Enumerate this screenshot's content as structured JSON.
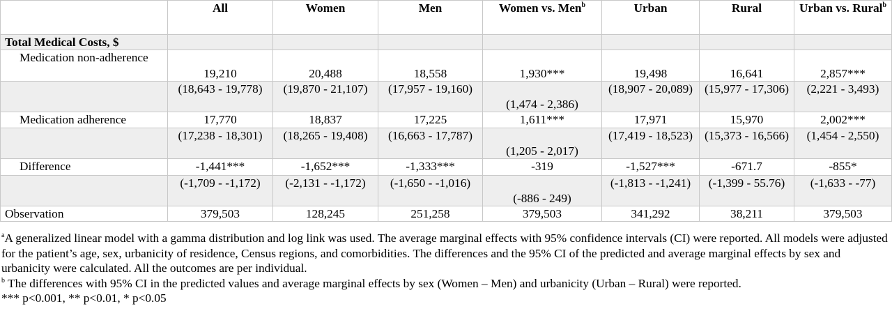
{
  "header": {
    "cols": [
      "All",
      "Women",
      "Men",
      "Women vs. Men",
      "Urban",
      "Rural",
      "Urban vs. Rural"
    ],
    "sup_b": "b"
  },
  "section_title": "Total Medical Costs, $",
  "rows": {
    "nonadh_label": "Medication non-adherence",
    "nonadh": [
      "19,210",
      "20,488",
      "18,558",
      "1,930***",
      "19,498",
      "16,641",
      "2,857***"
    ],
    "nonadh_ci": [
      "(18,643 - 19,778)",
      "(19,870 - 21,107)",
      "(17,957 - 19,160)",
      "(1,474 - 2,386)",
      "(18,907 - 20,089)",
      "(15,977 - 17,306)",
      "(2,221 - 3,493)"
    ],
    "adh_label": "Medication adherence",
    "adh": [
      "17,770",
      "18,837",
      "17,225",
      "1,611***",
      "17,971",
      "15,970",
      "2,002***"
    ],
    "adh_ci": [
      "(17,238 - 18,301)",
      "(18,265 - 19,408)",
      "(16,663 - 17,787)",
      "(1,205 - 2,017)",
      "(17,419 - 18,523)",
      "(15,373 - 16,566)",
      "(1,454 - 2,550)"
    ],
    "diff_label": "Difference",
    "diff": [
      "-1,441***",
      "-1,652***",
      "-1,333***",
      "-319",
      "-1,527***",
      "-671.7",
      "-855*"
    ],
    "diff_ci": [
      "(-1,709 - -1,172)",
      "(-2,131 - -1,172)",
      "(-1,650 - -1,016)",
      "(-886 - 249)",
      "(-1,813 - -1,241)",
      "(-1,399 - 55.76)",
      "(-1,633 - -77)"
    ],
    "obs_label": "Observation",
    "obs": [
      "379,503",
      "128,245",
      "251,258",
      "379,503",
      "341,292",
      "38,211",
      "379,503"
    ]
  },
  "notes": {
    "a_mark": "a",
    "a_text": "A generalized linear model with a gamma distribution and log link was used. The average marginal effects with 95% confidence intervals (CI) were reported. All models were adjusted for the patient’s age, sex, urbanicity of residence, Census regions, and comorbidities. The differences and the 95% CI of the predicted and average marginal effects by sex and urbanicity were calculated. All the outcomes are per individual.",
    "b_mark": "b",
    "b_text": " The differences with 95% CI in the predicted values and average marginal effects by sex (Women – Men) and urbanicity (Urban – Rural) were reported.",
    "sig": "*** p<0.001, ** p<0.01, * p<0.05"
  }
}
